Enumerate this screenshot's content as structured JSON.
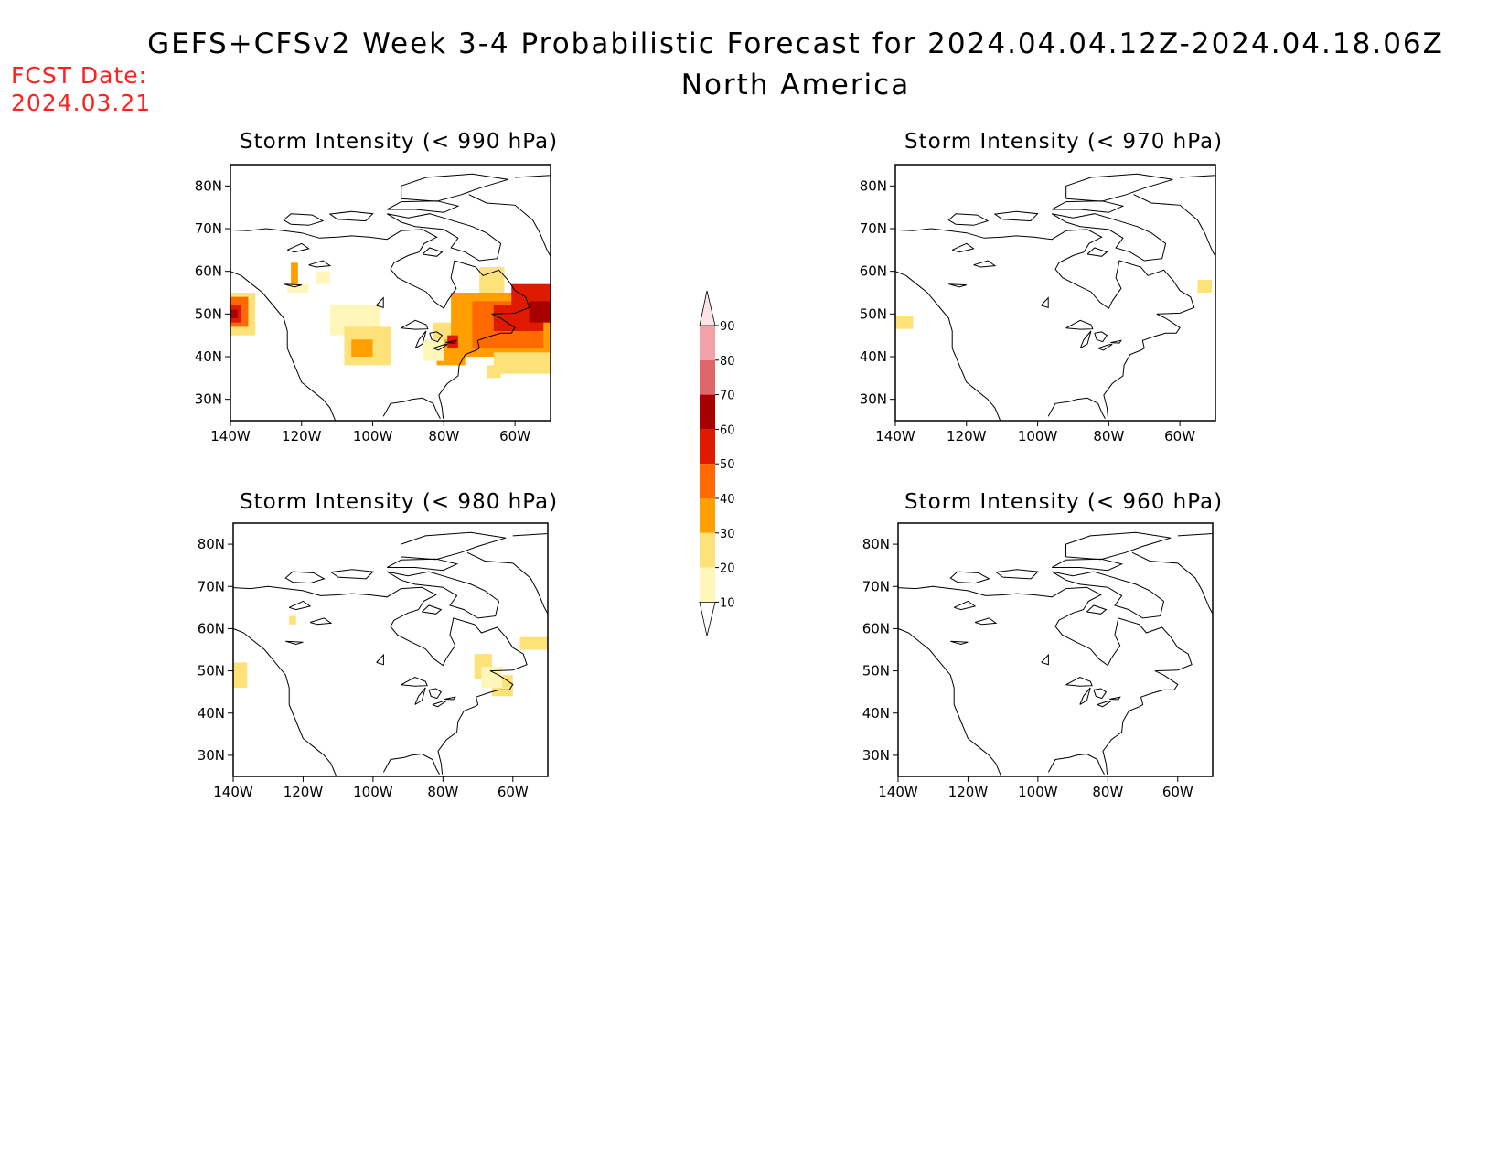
{
  "header": {
    "title": "GEFS+CFSv2 Week 3-4 Probabilistic Forecast for 2024.04.04.12Z-2024.04.18.06Z",
    "subtitle": "North America",
    "fcst_label": "FCST Date:",
    "fcst_date": "2024.03.21"
  },
  "axes": {
    "lat_ticks": [
      "80N",
      "70N",
      "60N",
      "50N",
      "40N",
      "30N"
    ],
    "lon_ticks": [
      "140W",
      "120W",
      "100W",
      "80W",
      "60W"
    ],
    "lat_values": [
      80,
      70,
      60,
      50,
      40,
      30
    ],
    "lon_values": [
      -140,
      -120,
      -100,
      -80,
      -60
    ],
    "lon_range": [
      -140,
      -50
    ],
    "lat_range": [
      25,
      85
    ]
  },
  "panels": [
    {
      "title": "Storm Intensity (< 990 hPa)",
      "threshold": 990
    },
    {
      "title": "Storm Intensity (< 970 hPa)",
      "threshold": 970
    },
    {
      "title": "Storm Intensity (< 980 hPa)",
      "threshold": 980
    },
    {
      "title": "Storm Intensity (< 960 hPa)",
      "threshold": 960
    }
  ],
  "colorbar": {
    "labels": [
      "90",
      "80",
      "70",
      "60",
      "50",
      "40",
      "30",
      "20",
      "10"
    ],
    "colors": [
      "#fde2e6",
      "#f2a1a8",
      "#e06769",
      "#a80000",
      "#e01a00",
      "#ff6a00",
      "#ff9f00",
      "#fde27a",
      "#fff7ba"
    ]
  }
}
